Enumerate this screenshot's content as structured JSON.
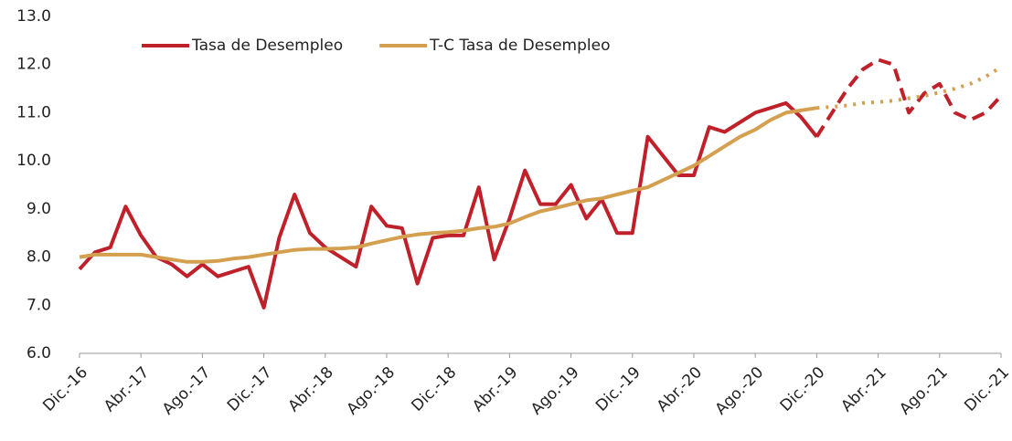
{
  "chart_data": {
    "type": "line",
    "categories": [
      "Dic.-16",
      null,
      null,
      null,
      "Abr.-17",
      null,
      null,
      null,
      "Ago.-17",
      null,
      null,
      null,
      "Dic.-17",
      null,
      null,
      null,
      "Abr.-18",
      null,
      null,
      null,
      "Ago.-18",
      null,
      null,
      null,
      "Dic.-18",
      null,
      null,
      null,
      "Abr.-19",
      null,
      null,
      null,
      "Ago.-19",
      null,
      null,
      null,
      "Dic.-19",
      null,
      null,
      null,
      "Abr.-20",
      null,
      null,
      null,
      "Ago.-20",
      null,
      null,
      null,
      "Dic.-20",
      null,
      null,
      null,
      "Abr.-21",
      null,
      null,
      null,
      "Ago.-21",
      null,
      null,
      null,
      "Dic.-21"
    ],
    "series": [
      {
        "name": "Tasa de Desempleo",
        "color": "#c0202a",
        "width": 4,
        "forecast_dash": "14 8",
        "values": [
          7.75,
          8.1,
          8.2,
          9.05,
          8.45,
          8.0,
          7.85,
          7.6,
          7.85,
          7.6,
          7.7,
          7.8,
          6.95,
          8.4,
          9.3,
          8.5,
          8.2,
          8.0,
          7.8,
          9.05,
          8.65,
          8.6,
          7.45,
          8.4,
          8.45,
          8.45,
          9.45,
          7.95,
          8.8,
          9.8,
          9.1,
          9.1,
          9.5,
          8.8,
          9.2,
          8.5,
          8.5,
          10.5,
          10.1,
          9.7,
          9.7,
          10.7,
          10.6,
          10.8,
          11.0,
          11.1,
          11.2,
          10.9,
          10.5,
          11.0,
          11.5,
          11.9,
          12.1,
          12.0,
          11.0,
          11.4,
          11.6,
          11.0,
          10.85,
          11.0,
          11.35
        ]
      },
      {
        "name": "T-C Tasa de Desempleo",
        "color": "#d4a050",
        "width": 4,
        "forecast_dash": "3 7",
        "values": [
          8.0,
          8.05,
          8.05,
          8.05,
          8.05,
          8.0,
          7.95,
          7.9,
          7.9,
          7.92,
          7.97,
          8.0,
          8.05,
          8.1,
          8.15,
          8.17,
          8.17,
          8.18,
          8.2,
          8.28,
          8.35,
          8.42,
          8.47,
          8.5,
          8.52,
          8.55,
          8.6,
          8.63,
          8.7,
          8.83,
          8.95,
          9.02,
          9.1,
          9.18,
          9.22,
          9.3,
          9.38,
          9.45,
          9.6,
          9.75,
          9.9,
          10.1,
          10.3,
          10.5,
          10.65,
          10.85,
          11.0,
          11.05,
          11.1,
          11.12,
          11.15,
          11.2,
          11.22,
          11.25,
          11.3,
          11.35,
          11.42,
          11.5,
          11.6,
          11.75,
          11.95
        ]
      }
    ],
    "forecast_from": 48,
    "ylim": [
      6,
      13
    ],
    "yticks": [
      {
        "value": 6,
        "label": "6.0"
      },
      {
        "value": 7,
        "label": "7.0"
      },
      {
        "value": 8,
        "label": "8.0"
      },
      {
        "value": 9,
        "label": "9.0"
      },
      {
        "value": 10,
        "label": "10.0"
      },
      {
        "value": 11,
        "label": "11.0"
      },
      {
        "value": 12,
        "label": "12.0"
      },
      {
        "value": 13,
        "label": "13.0"
      }
    ],
    "grid": false,
    "legend": "top-left"
  }
}
